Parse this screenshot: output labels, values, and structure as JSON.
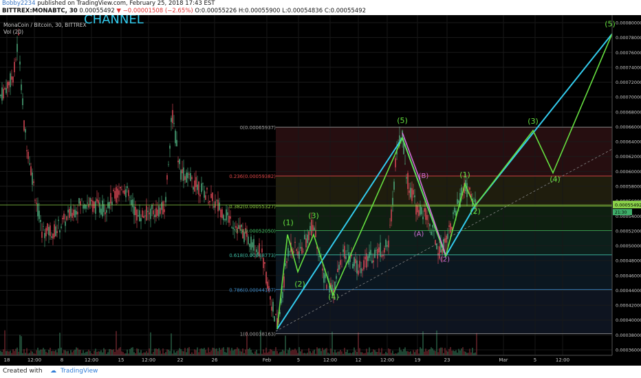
{
  "header": {
    "user": "Bobby2234",
    "published": " published on TradingView.com, February 25, 2018 17:43 EST",
    "symbol": "BITTREX:MONABTC, 30",
    "last": " 0.00055492",
    "change": " −0.00001508 (−2.65%)",
    "ohlc": " O:0.00055226 H:0.00055900 L:0.00054836 C:0.00055492"
  },
  "footer": {
    "created_with": "Created with",
    "brand": "TradingView"
  },
  "colors": {
    "bg": "#000000",
    "cyan": "#33ccee",
    "green": "#66e040",
    "violet": "#d070d8",
    "fib_line": "#7ad0c8"
  },
  "chart_data": {
    "type": "line",
    "title": "MonaCoin / Bitcoin, 30, BITTREX",
    "overlay_text": "CHANNEL",
    "indicator": "Vol (20)",
    "x_tick_labels": [
      "18",
      "12:00",
      "8",
      "12:00",
      "15",
      "12:00",
      "22",
      "26",
      "Feb",
      "5",
      "12:00",
      "12",
      "12:00",
      "19",
      "23",
      "Mar",
      "5",
      "12:00"
    ],
    "y_axis_labels": [
      "0.00080000",
      "0.00078000",
      "0.00076000",
      "0.00074000",
      "0.00072000",
      "0.00070000",
      "0.00068000",
      "0.00066000",
      "0.00064000",
      "0.00062000",
      "0.00060000",
      "0.00058000",
      "0.00056000",
      "0.00054000",
      "0.00052000",
      "0.00050000",
      "0.00048000",
      "0.00046000",
      "0.00044000",
      "0.00042000",
      "0.00040000",
      "0.00038000",
      "0.00036000"
    ],
    "ylim": [
      0.000352,
      0.000811
    ],
    "current_price_label": "0.00055492",
    "current_price_value": 0.00055492,
    "current_sub_label": "21:30",
    "fibonacci": [
      {
        "label": "0(0.00065937)",
        "value": 0.00065937,
        "color": "#a0a0a0"
      },
      {
        "label": "0.236(0.00059382)",
        "value": 0.00059382,
        "color": "#e04848"
      },
      {
        "label": "0.382(0.00055327)",
        "value": 0.00055327,
        "color": "#8fd040"
      },
      {
        "label": "0.5(0.00052050)",
        "value": 0.0005205,
        "color": "#40c060"
      },
      {
        "label": "0.618(0.00048773)",
        "value": 0.00048773,
        "color": "#40c0a8"
      },
      {
        "label": "0.786(0.00044107)",
        "value": 0.00044107,
        "color": "#4090d0"
      },
      {
        "label": "1(0.00038163)",
        "value": 0.00038163,
        "color": "#a0a0a0"
      }
    ],
    "wave_labels_green": [
      "(1)",
      "(2)",
      "(3)",
      "(4)",
      "(5)",
      "(1)",
      "(2)",
      "(3)",
      "(4)",
      "(5)"
    ],
    "wave_labels_violet": [
      "(A)",
      "(B)",
      "(2)"
    ],
    "grid": true
  }
}
